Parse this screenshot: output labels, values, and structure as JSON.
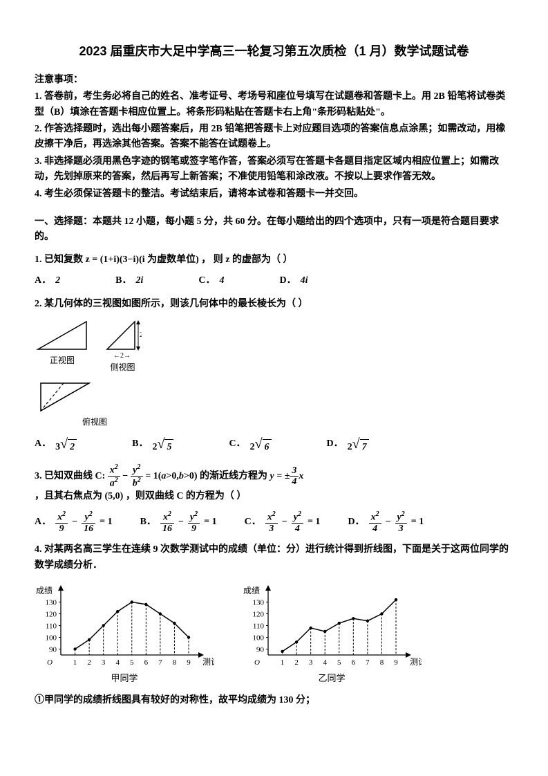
{
  "title": "2023 届重庆市大足中学高三一轮复习第五次质检（1 月）数学试题试卷",
  "instructions": {
    "header": "注意事项：",
    "lines": [
      "1. 答卷前，考生务必将自己的姓名、准考证号、考场号和座位号填写在试题卷和答题卡上。用 2B 铅笔将试卷类型（B）填涂在答题卡相应位置上。将条形码粘贴在答题卡右上角\"条形码粘贴处\"。",
      "2. 作答选择题时，选出每小题答案后，用 2B 铅笔把答题卡上对应题目选项的答案信息点涂黑；如需改动，用橡皮擦干净后，再选涂其他答案。答案不能答在试题卷上。",
      "3. 非选择题必须用黑色字迹的钢笔或签字笔作答，答案必须写在答题卡各题目指定区域内相应位置上；如需改动，先划掉原来的答案，然后再写上新答案；不准使用铅笔和涂改液。不按以上要求作答无效。",
      "4. 考生必须保证答题卡的整洁。考试结束后，请将本试卷和答题卡一并交回。"
    ]
  },
  "section1_header": "一、选择题：本题共 12 小题，每小题 5 分，共 60 分。在每小题给出的四个选项中，只有一项是符合题目要求的。",
  "q1": {
    "text": "1. 已知复数 z = (1+i)(3−i)(i 为虚数单位)  ， 则 z 的虚部为（  ）",
    "options": {
      "A": "2",
      "B": "2i",
      "C": "4",
      "D": "4i"
    }
  },
  "q2": {
    "text": "2. 某几何体的三视图如图所示，则该几何体中的最长棱长为（    ）",
    "labels": {
      "front": "正视图",
      "side": "侧视图",
      "top": "俯视图"
    },
    "options": {
      "A": "3√2",
      "B": "2√5",
      "C": "2√6",
      "D": "2√7"
    }
  },
  "q3": {
    "text_pre": "3. 已知双曲线 C:",
    "text_mid": " 的渐近线方程为 ",
    "text_post": " ，且其右焦点为 (5,0) ，则双曲线 C 的方程为（    ）",
    "options": {
      "A_num": "x²/9 − y²/16 = 1",
      "B_num": "x²/16 − y²/9 = 1",
      "C_num": "x²/3 − y²/4 = 1",
      "D_num": "x²/4 − y²/3 = 1"
    }
  },
  "q4": {
    "text": "4. 对某两名高三学生在连续 9 次数学测试中的成绩（单位：分）进行统计得到折线图，下面是关于这两位同学的数学成绩分析．",
    "charts": {
      "ylabel": "成绩",
      "xlabel": "测试次号",
      "left_label": "甲同学",
      "right_label": "乙同学",
      "yticks": [
        90,
        100,
        110,
        120,
        130
      ],
      "xticks": [
        1,
        2,
        3,
        4,
        5,
        6,
        7,
        8,
        9
      ],
      "left_values": [
        90,
        98,
        110,
        122,
        130,
        128,
        120,
        112,
        100
      ],
      "right_values": [
        88,
        96,
        108,
        105,
        112,
        116,
        114,
        120,
        132
      ],
      "line_color": "#000000",
      "grid_color": "#000000",
      "background": "#ffffff"
    },
    "statement1": "①甲同学的成绩折线图具有较好的对称性，故平均成绩为 130 分；"
  }
}
